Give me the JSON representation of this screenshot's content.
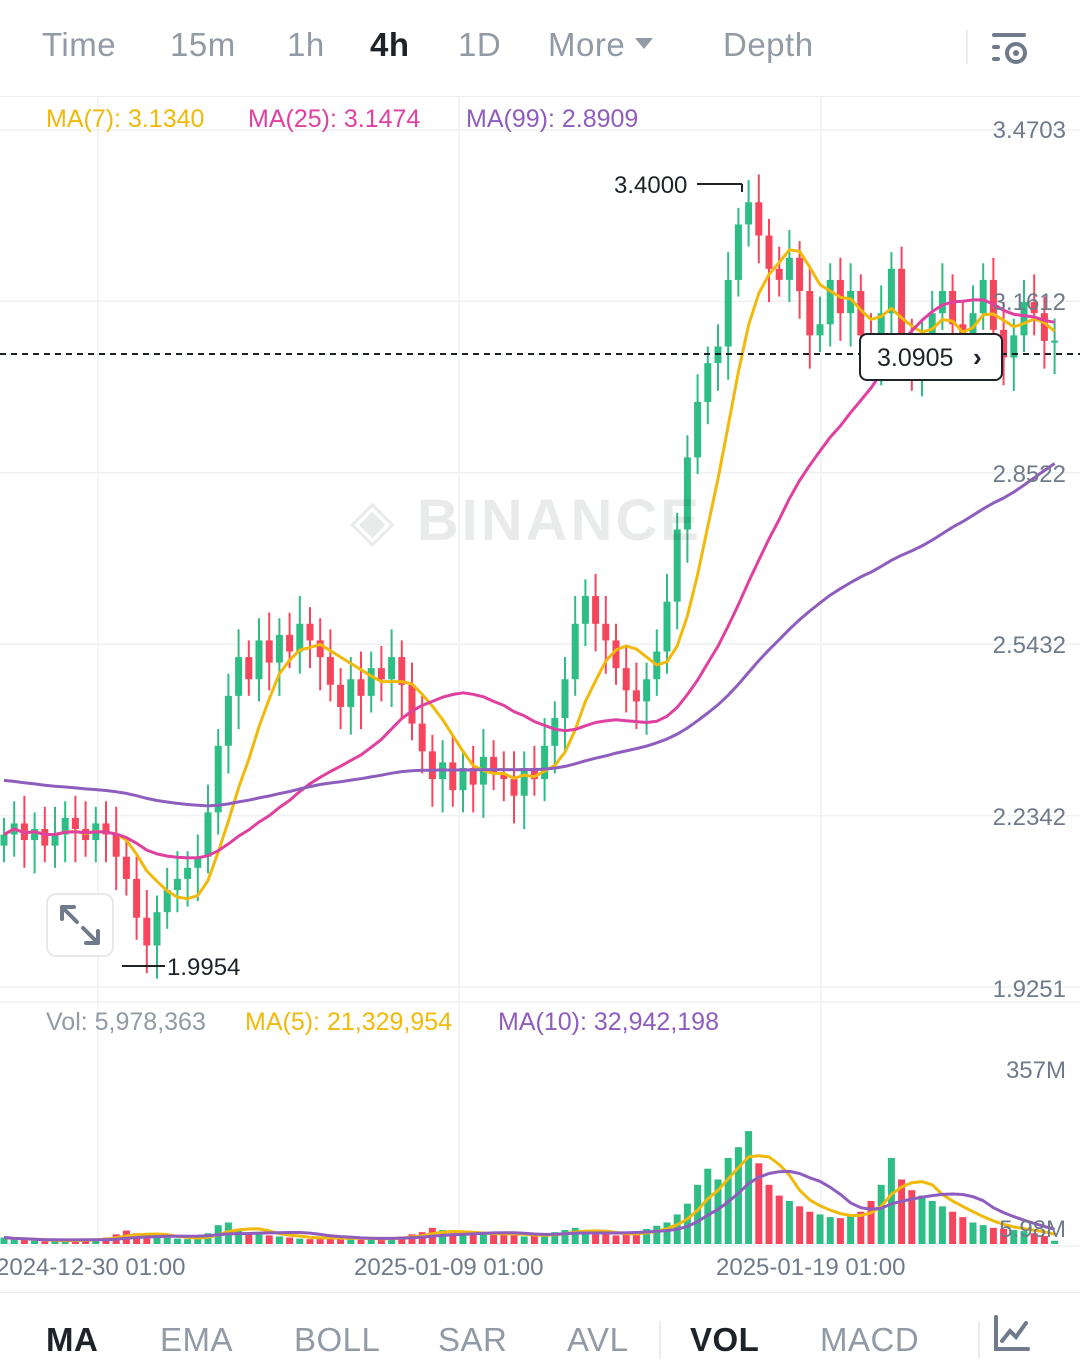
{
  "timeframes": {
    "time": "Time",
    "m15": "15m",
    "h1": "1h",
    "h4": "4h",
    "d1": "1D",
    "more": "More",
    "depth": "Depth"
  },
  "active_timeframe": "4h",
  "ma_legend": {
    "ma7": "MA(7): 3.1340",
    "ma25": "MA(25): 3.1474",
    "ma99": "MA(99): 2.8909"
  },
  "price_axis": [
    "3.4703",
    "3.1612",
    "2.8522",
    "2.5432",
    "2.2342",
    "1.9251"
  ],
  "annotations": {
    "high": "3.4000",
    "low": "1.9954"
  },
  "current_price": "3.0905",
  "watermark": "BINANCE",
  "vol_legend": {
    "vol": "Vol: 5,978,363",
    "ma5": "MA(5): 21,329,954",
    "ma10": "MA(10): 32,942,198"
  },
  "vol_axis": {
    "top": "357M",
    "bottom": "5.98M"
  },
  "time_axis": [
    "2024-12-30 01:00",
    "2025-01-09 01:00",
    "2025-01-19 01:00"
  ],
  "indicators": {
    "ma": "MA",
    "ema": "EMA",
    "boll": "BOLL",
    "sar": "SAR",
    "avl": "AVL",
    "vol": "VOL",
    "macd": "MACD"
  },
  "colors": {
    "up": "#2ebd85",
    "down": "#f6465d",
    "ma7": "#f0b90b",
    "ma25": "#e040a0",
    "ma99": "#8e5dbd",
    "grid": "#eef0f2",
    "axis_text": "#707a8a"
  },
  "chart_data": {
    "type": "candlestick",
    "price_range": [
      1.9251,
      3.4703
    ],
    "volume_range": [
      0,
      357000000
    ],
    "close_series": [
      2.2,
      2.22,
      2.19,
      2.21,
      2.18,
      2.2,
      2.23,
      2.21,
      2.19,
      2.22,
      2.2,
      2.16,
      2.12,
      2.05,
      2.0,
      2.06,
      2.1,
      2.12,
      2.14,
      2.16,
      2.24,
      2.36,
      2.45,
      2.52,
      2.48,
      2.55,
      2.51,
      2.56,
      2.53,
      2.58,
      2.55,
      2.52,
      2.47,
      2.43,
      2.48,
      2.45,
      2.5,
      2.48,
      2.52,
      2.47,
      2.4,
      2.35,
      2.3,
      2.33,
      2.28,
      2.32,
      2.29,
      2.34,
      2.31,
      2.3,
      2.27,
      2.32,
      2.3,
      2.36,
      2.41,
      2.48,
      2.58,
      2.63,
      2.58,
      2.55,
      2.5,
      2.46,
      2.44,
      2.48,
      2.53,
      2.62,
      2.75,
      2.88,
      2.98,
      3.05,
      3.08,
      3.2,
      3.3,
      3.34,
      3.28,
      3.22,
      3.2,
      3.24,
      3.18,
      3.1,
      3.12,
      3.2,
      3.14,
      3.18,
      3.1,
      3.06,
      3.14,
      3.22,
      3.08,
      3.04,
      3.1,
      3.14,
      3.18,
      3.12,
      3.08,
      3.14,
      3.2,
      3.11,
      3.06,
      3.1,
      3.16,
      3.14,
      3.09,
      3.0905
    ],
    "volume_series": [
      12,
      9,
      8,
      6,
      5,
      7,
      6,
      8,
      10,
      9,
      12,
      18,
      25,
      20,
      16,
      14,
      12,
      10,
      9,
      11,
      20,
      35,
      40,
      26,
      18,
      22,
      16,
      14,
      12,
      10,
      9,
      12,
      14,
      10,
      9,
      8,
      10,
      11,
      12,
      14,
      18,
      22,
      30,
      26,
      20,
      16,
      18,
      22,
      20,
      18,
      16,
      14,
      16,
      18,
      22,
      26,
      30,
      24,
      20,
      18,
      16,
      18,
      22,
      28,
      34,
      40,
      55,
      75,
      110,
      140,
      120,
      160,
      180,
      210,
      150,
      110,
      90,
      80,
      70,
      60,
      55,
      50,
      48,
      52,
      60,
      80,
      110,
      160,
      120,
      100,
      90,
      80,
      70,
      60,
      50,
      40,
      35,
      30,
      28,
      26,
      24,
      20,
      15,
      6
    ]
  }
}
